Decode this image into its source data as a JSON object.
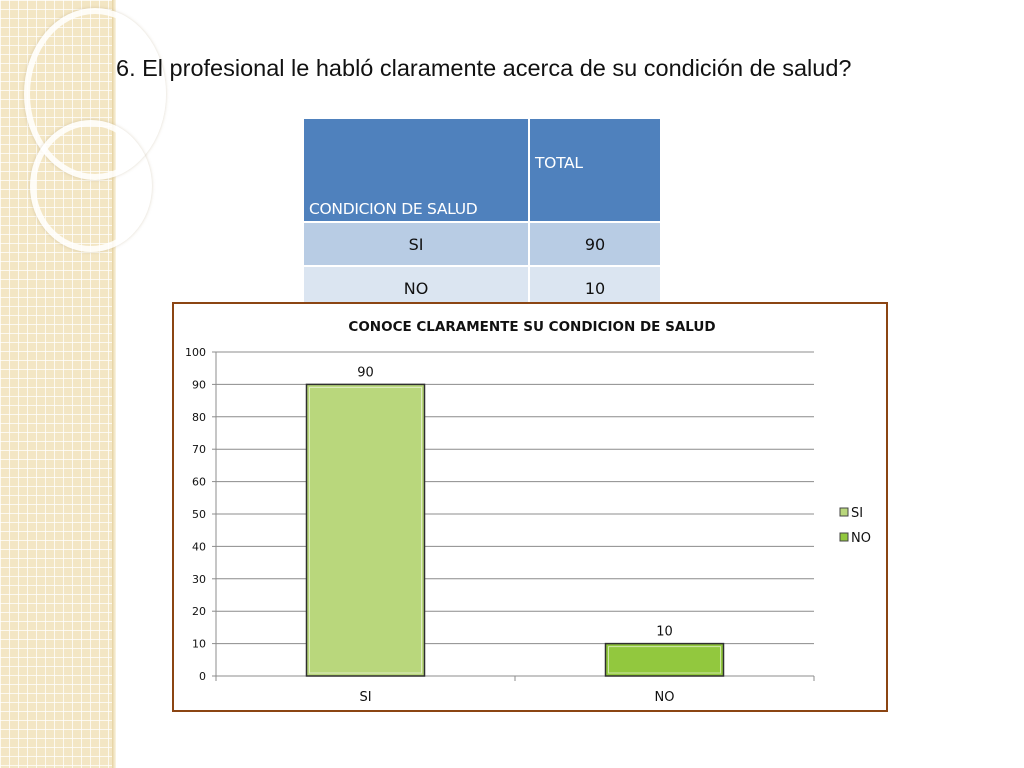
{
  "question": "6. El profesional le habló claramente acerca de su condición de salud?",
  "table": {
    "headers": [
      "CONDICION DE SALUD",
      "TOTAL"
    ],
    "rows": [
      {
        "label": "SI",
        "total": "90"
      },
      {
        "label": "NO",
        "total": "10"
      }
    ]
  },
  "colors": {
    "header_bg": "#4f81bd",
    "row1_bg": "#b8cce4",
    "row2_bg": "#dbe5f1",
    "frame_border": "#8b4513",
    "bar_si": "#b9d77c",
    "bar_no": "#92c83e"
  },
  "chart_data": {
    "type": "bar",
    "title": "CONOCE CLARAMENTE SU CONDICION DE SALUD",
    "categories": [
      "SI",
      "NO"
    ],
    "values": [
      90,
      10
    ],
    "data_labels": [
      "90",
      "10"
    ],
    "ylim": [
      0,
      100
    ],
    "yticks": [
      0,
      10,
      20,
      30,
      40,
      50,
      60,
      70,
      80,
      90,
      100
    ],
    "xlabel": "",
    "ylabel": "",
    "grid": true,
    "legend": {
      "position": "right",
      "entries": [
        "SI",
        "NO"
      ]
    }
  }
}
